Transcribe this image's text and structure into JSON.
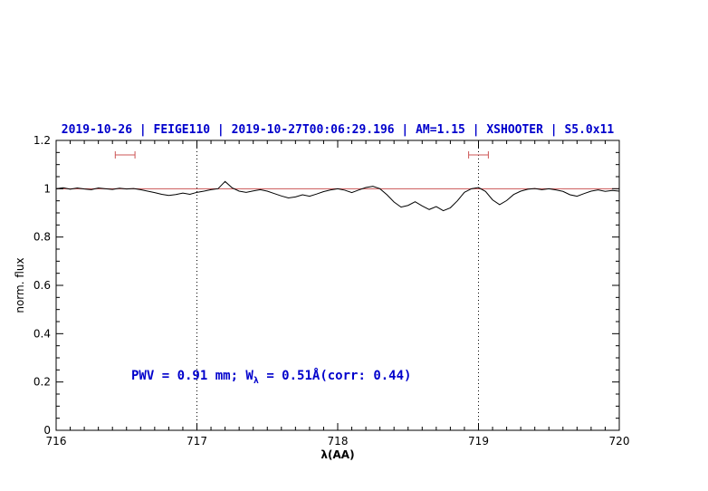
{
  "chart_data": {
    "type": "line",
    "title": "2019-10-26 | FEIGE110 | 2019-10-27T00:06:29.196 | AM=1.15 | XSHOOTER | S5.0x11",
    "title_color": "#0000cc",
    "xlabel": "λ(AA)",
    "ylabel": "norm. flux",
    "xlim": [
      716,
      720
    ],
    "ylim": [
      0,
      1.2
    ],
    "xticks": [
      716,
      717,
      718,
      719,
      720
    ],
    "xtick_labels": [
      "716",
      "717",
      "718",
      "719",
      "720"
    ],
    "yticks": [
      0,
      0.2,
      0.4,
      0.6,
      0.8,
      1,
      1.2
    ],
    "ytick_labels": [
      "0",
      "0.2",
      "0.4",
      "0.6",
      "0.8",
      "1",
      "1.2"
    ],
    "x_minor_step": 0.1,
    "y_minor_step": 0.05,
    "grid": false,
    "legend": "none",
    "dotted_vlines": [
      717,
      719
    ],
    "continuum_line": {
      "y": 1.0,
      "color": "#cc5555"
    },
    "range_markers": [
      {
        "x1": 716.42,
        "x2": 716.56,
        "y": 1.14,
        "color": "#cc5555"
      },
      {
        "x1": 718.93,
        "x2": 719.07,
        "y": 1.14,
        "color": "#cc5555"
      }
    ],
    "annotation": {
      "pre": "PWV = 0.91 mm; W",
      "sub": "λ",
      "post": " = 0.51Å(corr: 0.44)"
    },
    "series": [
      {
        "name": "normalized spectrum",
        "color": "#000000",
        "x": [
          716.0,
          716.05,
          716.1,
          716.15,
          716.2,
          716.25,
          716.3,
          716.35,
          716.4,
          716.45,
          716.5,
          716.55,
          716.6,
          716.65,
          716.7,
          716.75,
          716.8,
          716.85,
          716.9,
          716.95,
          717.0,
          717.05,
          717.1,
          717.15,
          717.2,
          717.25,
          717.3,
          717.35,
          717.4,
          717.45,
          717.5,
          717.55,
          717.6,
          717.65,
          717.7,
          717.75,
          717.8,
          717.85,
          717.9,
          717.95,
          718.0,
          718.05,
          718.1,
          718.15,
          718.2,
          718.25,
          718.3,
          718.35,
          718.4,
          718.45,
          718.5,
          718.55,
          718.6,
          718.65,
          718.7,
          718.75,
          718.8,
          718.85,
          718.9,
          718.95,
          719.0,
          719.05,
          719.1,
          719.15,
          719.2,
          719.25,
          719.3,
          719.35,
          719.4,
          719.45,
          719.5,
          719.55,
          719.6,
          719.65,
          719.7,
          719.75,
          719.8,
          719.85,
          719.9,
          719.95,
          720.0
        ],
        "y": [
          1.0,
          1.004,
          0.998,
          1.003,
          0.999,
          0.996,
          1.003,
          1.0,
          0.997,
          1.002,
          0.999,
          1.001,
          0.996,
          0.99,
          0.984,
          0.977,
          0.972,
          0.976,
          0.982,
          0.977,
          0.985,
          0.99,
          0.996,
          1.0,
          1.03,
          1.004,
          0.99,
          0.985,
          0.991,
          0.996,
          0.99,
          0.98,
          0.97,
          0.962,
          0.966,
          0.975,
          0.969,
          0.978,
          0.988,
          0.995,
          1.0,
          0.994,
          0.984,
          0.995,
          1.005,
          1.01,
          1.0,
          0.975,
          0.945,
          0.924,
          0.931,
          0.946,
          0.929,
          0.914,
          0.926,
          0.909,
          0.921,
          0.95,
          0.985,
          1.0,
          1.005,
          0.989,
          0.954,
          0.934,
          0.951,
          0.976,
          0.99,
          0.998,
          1.001,
          0.996,
          1.0,
          0.995,
          0.989,
          0.975,
          0.969,
          0.98,
          0.99,
          0.995,
          0.989,
          0.993,
          0.99
        ]
      }
    ]
  }
}
